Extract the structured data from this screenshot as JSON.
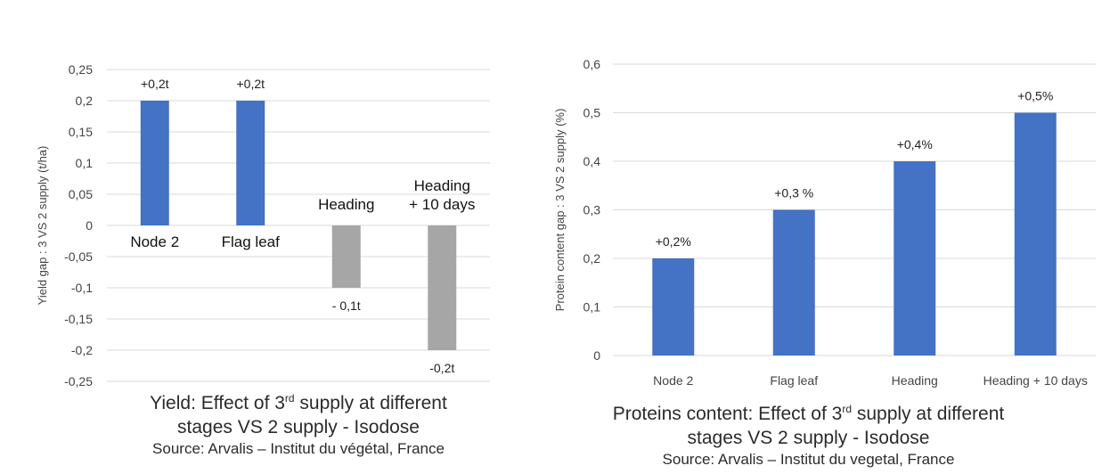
{
  "chart_data": [
    {
      "type": "bar",
      "ylabel": "Yield gap : 3 VS 2 supply (t/ha)",
      "ylim": [
        -0.25,
        0.25
      ],
      "yticks": [
        "0,25",
        "0,2",
        "0,15",
        "0,1",
        "0,05",
        "0",
        "-0,05",
        "-0,1",
        "-0,15",
        "-0,2",
        "-0,25"
      ],
      "ytick_values": [
        0.25,
        0.2,
        0.15,
        0.1,
        0.05,
        0,
        -0.05,
        -0.1,
        -0.15,
        -0.2,
        -0.25
      ],
      "grid": true,
      "categories": [
        "Node 2",
        "Flag leaf",
        "Heading",
        "Heading\n+ 10 days"
      ],
      "values": [
        0.2,
        0.2,
        -0.1,
        -0.2
      ],
      "data_labels": [
        "+0,2t",
        "+0,2t",
        "- 0,1t",
        "-0,2t"
      ],
      "colors": [
        "#4472c4",
        "#4472c4",
        "#a6a6a6",
        "#a6a6a6"
      ],
      "caption": {
        "line1_pre": "Yield: Effect of 3",
        "line1_sup": "rd",
        "line1_post": " supply at different",
        "line2": "stages VS 2 supply - Isodose",
        "source": "Source: Arvalis – Institut du végétal, France"
      }
    },
    {
      "type": "bar",
      "ylabel": "Protein content gap : 3 VS 2 supply (%)",
      "ylim": [
        0,
        0.6
      ],
      "yticks": [
        "0,6",
        "0,5",
        "0,4",
        "0,3",
        "0,2",
        "0,1",
        "0"
      ],
      "ytick_values": [
        0.6,
        0.5,
        0.4,
        0.3,
        0.2,
        0.1,
        0
      ],
      "grid": true,
      "categories": [
        "Node 2",
        "Flag leaf",
        "Heading",
        "Heading +  10 days"
      ],
      "values": [
        0.2,
        0.3,
        0.4,
        0.5
      ],
      "data_labels": [
        "+0,2%",
        "+0,3 %",
        "+0,4%",
        "+0,5%"
      ],
      "colors": [
        "#4472c4",
        "#4472c4",
        "#4472c4",
        "#4472c4"
      ],
      "caption": {
        "line1_pre": "Proteins content: Effect of 3",
        "line1_sup": "rd",
        "line1_post": " supply at different",
        "line2": "stages VS 2 supply - Isodose",
        "source": "Source: Arvalis – Institut du vegetal, France"
      }
    }
  ]
}
